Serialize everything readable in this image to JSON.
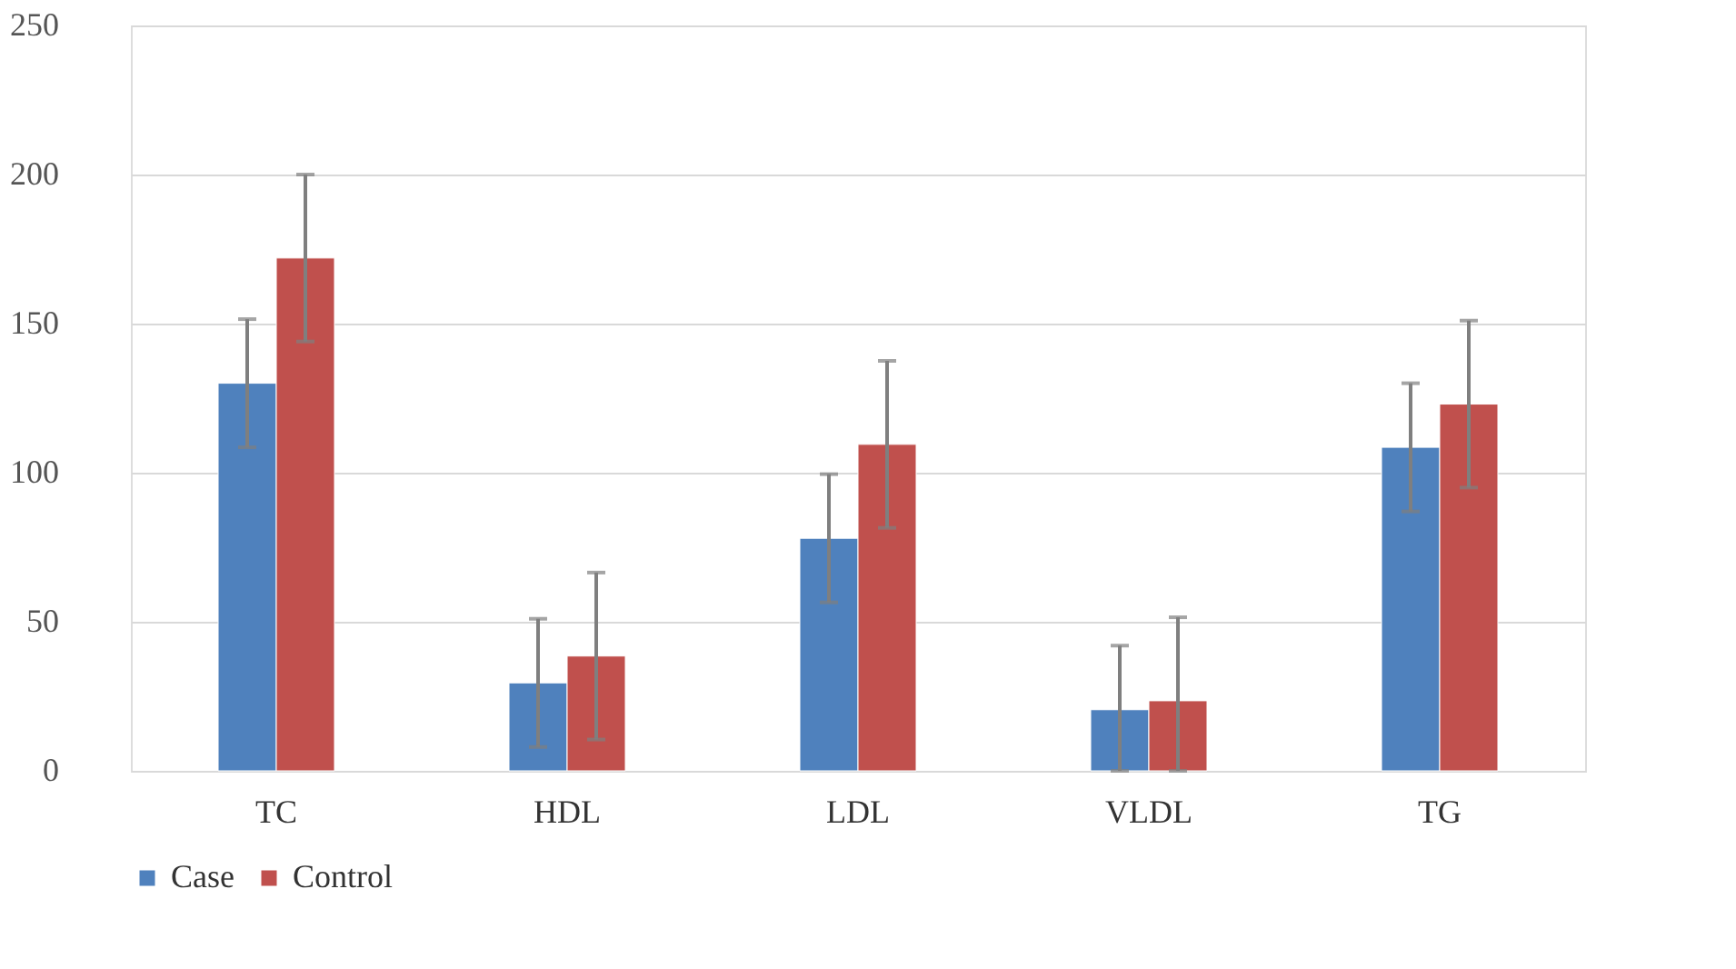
{
  "chart_data": {
    "type": "bar",
    "categories": [
      "TC",
      "HDL",
      "LDL",
      "VLDL",
      "TG"
    ],
    "series": [
      {
        "name": "Case",
        "color": "#4f81bd",
        "values": [
          130,
          29.5,
          78,
          20.5,
          108.5
        ],
        "errors": [
          21.5,
          21.5,
          21.5,
          [
            0,
            42
          ],
          21.5
        ]
      },
      {
        "name": "Control",
        "color": "#c0504d",
        "values": [
          172,
          38.5,
          109.5,
          23.5,
          123
        ],
        "errors": [
          28,
          28,
          28,
          [
            0,
            51.5
          ],
          28
        ]
      }
    ],
    "ylim": [
      0,
      250
    ],
    "yticks": [
      0,
      50,
      100,
      150,
      200,
      250
    ],
    "grid": "y",
    "legend": "bottom"
  }
}
